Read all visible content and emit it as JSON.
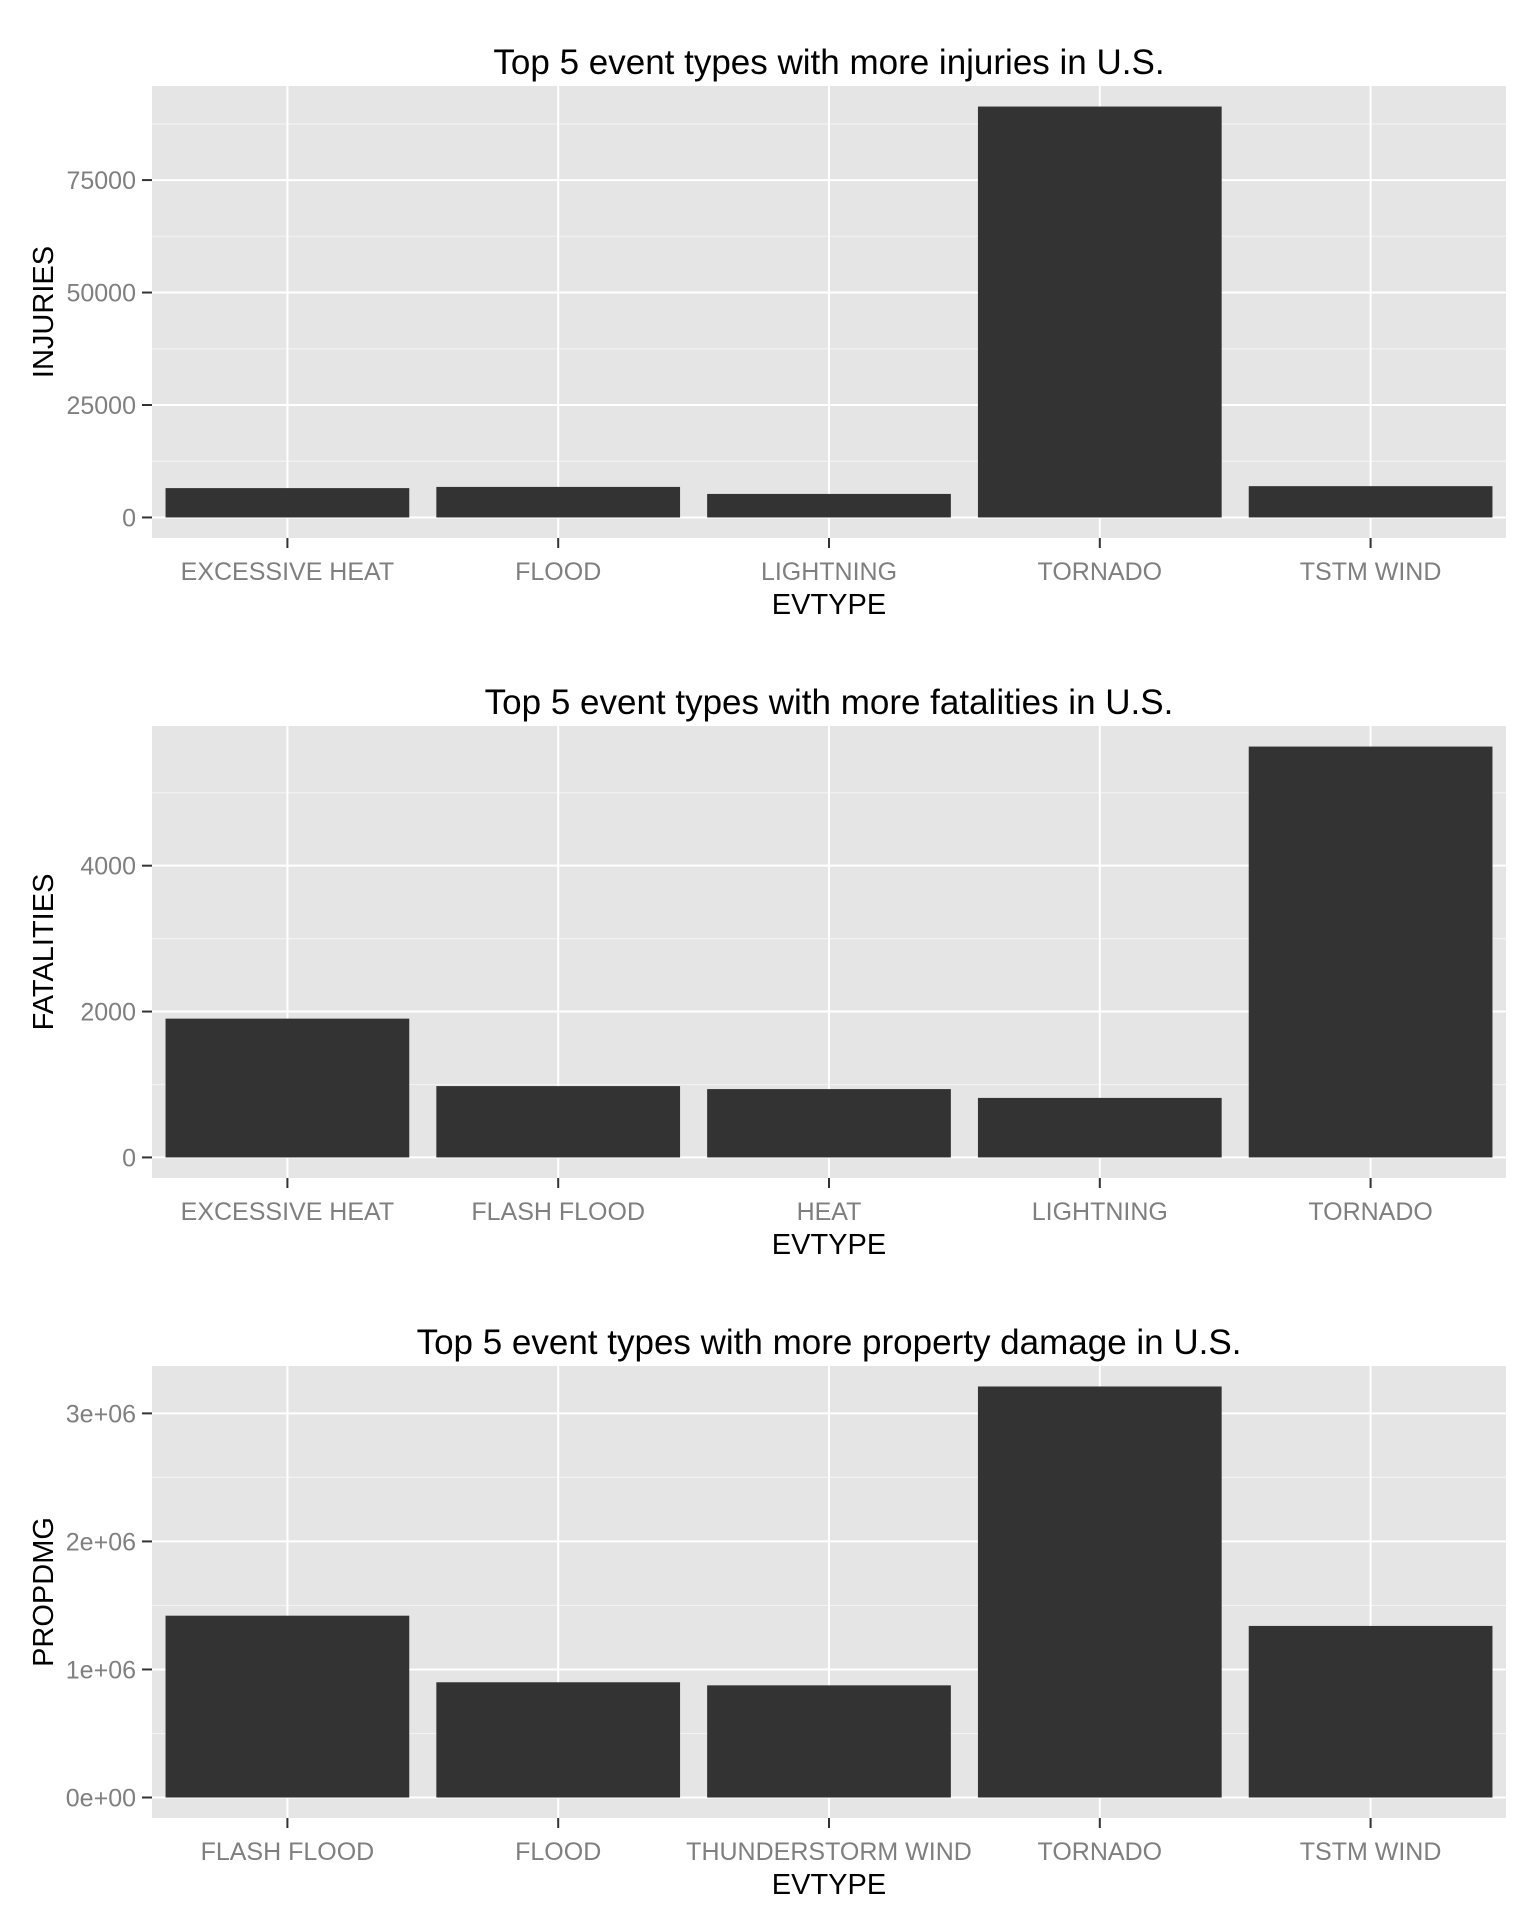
{
  "chart_data": [
    {
      "type": "bar",
      "title": "Top 5 event types with more injuries in U.S.",
      "xlabel": "EVTYPE",
      "ylabel": "INJURIES",
      "categories": [
        "EXCESSIVE HEAT",
        "FLOOD",
        "LIGHTNING",
        "TORNADO",
        "TSTM WIND"
      ],
      "values": [
        6525,
        6789,
        5230,
        91346,
        6957
      ],
      "ylim": [
        -4567,
        95913
      ],
      "yticks": [
        0,
        25000,
        50000,
        75000
      ],
      "ytick_labels": [
        "0",
        "25000",
        "50000",
        "75000"
      ],
      "grid": true,
      "colors": {
        "bar": "#333333",
        "panel": "#e5e5e5",
        "grid": "#ffffff"
      }
    },
    {
      "type": "bar",
      "title": "Top 5 event types with more fatalities in U.S.",
      "xlabel": "EVTYPE",
      "ylabel": "FATALITIES",
      "categories": [
        "EXCESSIVE HEAT",
        "FLASH FLOOD",
        "HEAT",
        "LIGHTNING",
        "TORNADO"
      ],
      "values": [
        1903,
        978,
        937,
        816,
        5633
      ],
      "ylim": [
        -282,
        5915
      ],
      "yticks": [
        0,
        2000,
        4000
      ],
      "ytick_labels": [
        "0",
        "2000",
        "4000"
      ],
      "grid": true,
      "colors": {
        "bar": "#333333",
        "panel": "#e5e5e5",
        "grid": "#ffffff"
      }
    },
    {
      "type": "bar",
      "title": "Top 5 event types with more property damage in U.S.",
      "xlabel": "EVTYPE",
      "ylabel": "PROPDMG",
      "categories": [
        "FLASH FLOOD",
        "FLOOD",
        "THUNDERSTORM WIND",
        "TORNADO",
        "TSTM WIND"
      ],
      "values": [
        1420000,
        900000,
        876000,
        3210000,
        1340000
      ],
      "ylim": [
        -160000,
        3370000
      ],
      "yticks": [
        0,
        1000000,
        2000000,
        3000000
      ],
      "ytick_labels": [
        "0e+00",
        "1e+06",
        "2e+06",
        "3e+06"
      ],
      "grid": true,
      "colors": {
        "bar": "#333333",
        "panel": "#e5e5e5",
        "grid": "#ffffff"
      }
    }
  ]
}
